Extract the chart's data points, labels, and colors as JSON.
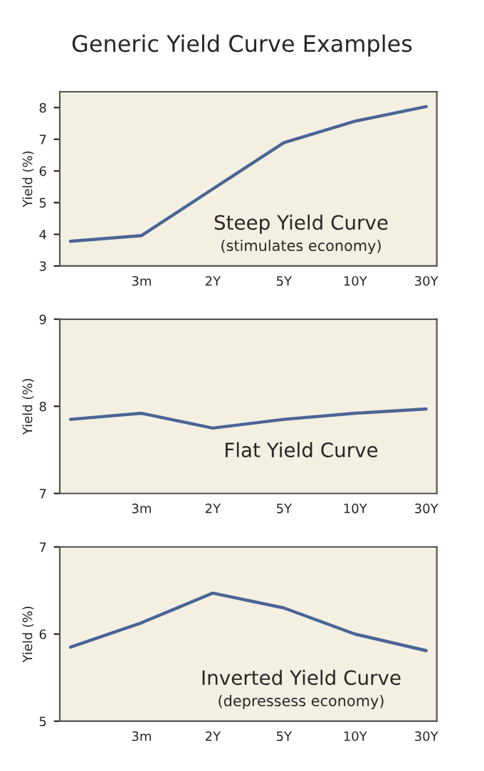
{
  "chart_data": [
    {
      "type": "line",
      "title": "Generic Yield Curve Examples",
      "ylabel": "Yield (%)",
      "annotations": [
        "Steep Yield Curve",
        "(stimulates economy)"
      ],
      "categories": [
        null,
        "3m",
        "2Y",
        "5Y",
        "10Y",
        "30Y"
      ],
      "ylim": [
        3,
        8.5
      ],
      "yticks": [
        3,
        4,
        5,
        6,
        7,
        8
      ],
      "grid": false,
      "legend": false,
      "series": [
        {
          "color": "#4a6496",
          "values": [
            3.78,
            3.96,
            5.43,
            6.89,
            7.57,
            8.03
          ]
        }
      ]
    },
    {
      "type": "line",
      "ylabel": "Yield (%)",
      "annotations": [
        "Flat Yield Curve"
      ],
      "categories": [
        null,
        "3m",
        "2Y",
        "5Y",
        "10Y",
        "30Y"
      ],
      "ylim": [
        7,
        9
      ],
      "yticks": [
        7,
        8,
        9
      ],
      "grid": false,
      "legend": false,
      "series": [
        {
          "color": "#4a6496",
          "values": [
            7.85,
            7.92,
            7.75,
            7.85,
            7.92,
            7.97
          ]
        }
      ]
    },
    {
      "type": "line",
      "ylabel": "Yield (%)",
      "annotations": [
        "Inverted Yield Curve",
        "(depressess economy)"
      ],
      "categories": [
        null,
        "3m",
        "2Y",
        "5Y",
        "10Y",
        "30Y"
      ],
      "ylim": [
        5,
        7
      ],
      "yticks": [
        5,
        6,
        7
      ],
      "grid": false,
      "legend": false,
      "series": [
        {
          "color": "#4a6496",
          "values": [
            5.85,
            6.13,
            6.47,
            6.3,
            6.0,
            5.81
          ]
        }
      ]
    }
  ]
}
